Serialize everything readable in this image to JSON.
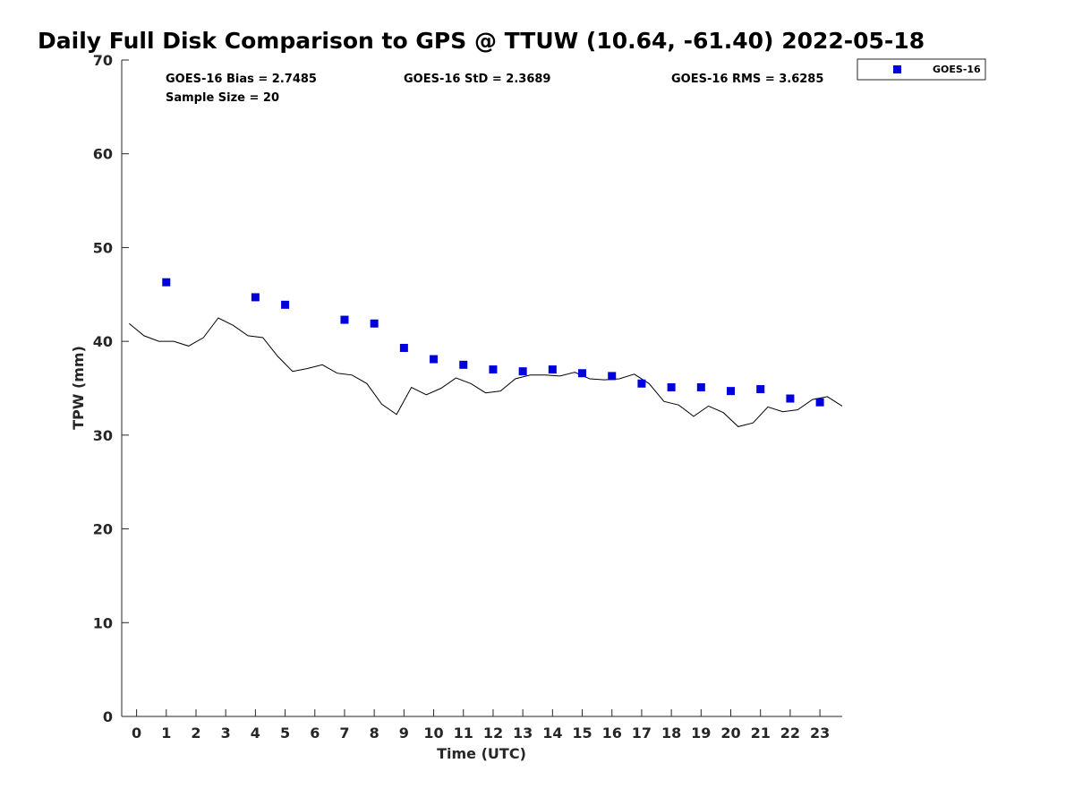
{
  "chart_data": {
    "type": "scatter",
    "title": "Daily Full Disk Comparison to GPS @ TTUW (10.64, -61.40) 2022-05-18",
    "xlabel": "Time (UTC)",
    "ylabel": "TPW (mm)",
    "xlim": [
      -0.5,
      23.75
    ],
    "ylim": [
      0,
      70
    ],
    "x_ticks": [
      0,
      1,
      2,
      3,
      4,
      5,
      6,
      7,
      8,
      9,
      10,
      11,
      12,
      13,
      14,
      15,
      16,
      17,
      18,
      19,
      20,
      21,
      22,
      23
    ],
    "y_ticks": [
      0,
      10,
      20,
      30,
      40,
      50,
      60,
      70
    ],
    "grid": false,
    "legend_position": "top-right, outside plot",
    "colors": {
      "goes": "#0000dd",
      "gps": "#000000"
    },
    "stats": {
      "bias": "GOES-16 Bias = 2.7485",
      "std": "GOES-16 StD = 2.3689",
      "rms": "GOES-16 RMS = 3.6285",
      "sample": "Sample Size = 20"
    },
    "series": [
      {
        "name": "GOES-16",
        "kind": "markers",
        "x": [
          1,
          4,
          5,
          7,
          8,
          9,
          10,
          11,
          12,
          13,
          14,
          15,
          16,
          17,
          18,
          19,
          20,
          21,
          22,
          23
        ],
        "y": [
          46.3,
          44.7,
          43.9,
          42.3,
          41.9,
          39.3,
          38.1,
          37.5,
          37.0,
          36.8,
          37.0,
          36.6,
          36.3,
          35.5,
          35.1,
          35.1,
          34.7,
          34.9,
          33.9,
          33.5
        ]
      },
      {
        "kind": "line",
        "x": [
          -0.25,
          0.25,
          0.75,
          1.25,
          1.75,
          2.25,
          2.75,
          3.25,
          3.75,
          4.25,
          4.75,
          5.25,
          5.75,
          6.25,
          6.75,
          7.25,
          7.75,
          8.25,
          8.75,
          9.25,
          9.75,
          10.25,
          10.75,
          11.25,
          11.75,
          12.25,
          12.75,
          13.25,
          13.75,
          14.25,
          14.75,
          15.25,
          15.75,
          16.25,
          16.75,
          17.25,
          17.75,
          18.25,
          18.75,
          19.25,
          19.75,
          20.25,
          20.75,
          21.25,
          21.75,
          22.25,
          22.75,
          23.25,
          23.75
        ],
        "y": [
          41.9,
          40.6,
          40.0,
          40.0,
          39.5,
          40.4,
          42.5,
          41.7,
          40.6,
          40.4,
          38.4,
          36.8,
          37.1,
          37.5,
          36.6,
          36.4,
          35.5,
          33.3,
          32.2,
          35.1,
          34.3,
          35.0,
          36.1,
          35.5,
          34.5,
          34.7,
          36.0,
          36.4,
          36.4,
          36.3,
          36.7,
          36.0,
          35.9,
          36.0,
          36.5,
          35.5,
          33.6,
          33.2,
          32.0,
          33.1,
          32.4,
          30.9,
          31.3,
          33.0,
          32.5,
          32.7,
          33.8,
          34.1,
          33.1
        ]
      }
    ]
  }
}
